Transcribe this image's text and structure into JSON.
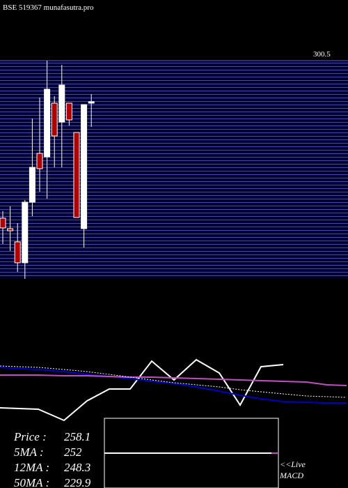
{
  "header": {
    "title": "BSE 519367 munafasutra.pro"
  },
  "chart_data": [
    {
      "type": "candlestick",
      "open": [
        137.8,
        127.0,
        113.3,
        91.7,
        154.3,
        204.7,
        201.1,
        256.6,
        237.1,
        256.6,
        226.3,
        127.0,
        256.6
      ],
      "high": [
        145.0,
        150.0,
        132.7,
        156.5,
        240.7,
        262.3,
        300.5,
        263.8,
        296.2,
        256.6,
        226.3,
        255.1,
        266.0
      ],
      "low": [
        111.1,
        104.0,
        82.3,
        75.1,
        139.9,
        165.1,
        157.9,
        190.3,
        190.3,
        233.5,
        138.5,
        107.5,
        232.1
      ],
      "close": [
        127.7,
        124.8,
        91.7,
        154.3,
        190.3,
        188.9,
        271.0,
        222.7,
        275.3,
        239.3,
        138.5,
        255.1,
        258.1
      ],
      "up_color": "#ffffff",
      "down_color": "#b00000",
      "ylim": [
        75.1,
        300.5
      ],
      "yticks": [
        300.5
      ]
    },
    {
      "type": "line",
      "x": [
        0,
        55,
        92,
        125,
        157,
        187,
        218,
        250,
        282,
        315,
        345,
        375,
        407,
        440,
        470,
        498
      ],
      "xlim": [
        0,
        500
      ],
      "ylim": [
        0,
        110
      ],
      "series": [
        {
          "color": "#ffffff",
          "dash": false,
          "values": [
            25,
            23,
            7,
            35,
            52,
            52,
            92,
            65,
            94,
            75,
            29,
            84,
            87,
            null,
            null,
            null
          ]
        },
        {
          "color": "#0000cc",
          "dash": false,
          "values": [
            83,
            80,
            77,
            73,
            70,
            67,
            63,
            60,
            55,
            49,
            43,
            38,
            34,
            33,
            32,
            32
          ]
        },
        {
          "color": "#c050c0",
          "dash": false,
          "values": [
            72,
            72,
            71,
            71,
            70,
            69,
            69,
            68,
            67,
            66,
            65,
            64,
            63,
            62,
            58,
            57
          ]
        },
        {
          "color": "#ffffff",
          "dash": true,
          "values": [
            85,
            83,
            80,
            77,
            73,
            69,
            65,
            61,
            58,
            55,
            51,
            48,
            45,
            42,
            41,
            40
          ]
        }
      ]
    }
  ],
  "stats": [
    {
      "label": "Price   :",
      "value": 258.1
    },
    {
      "label": "5MA :",
      "value": 252
    },
    {
      "label": "12MA :",
      "value": 248.3
    },
    {
      "label": "50MA :",
      "value": 229.9
    }
  ],
  "macd": {
    "line1": "<<Live",
    "line2": "MACD"
  }
}
